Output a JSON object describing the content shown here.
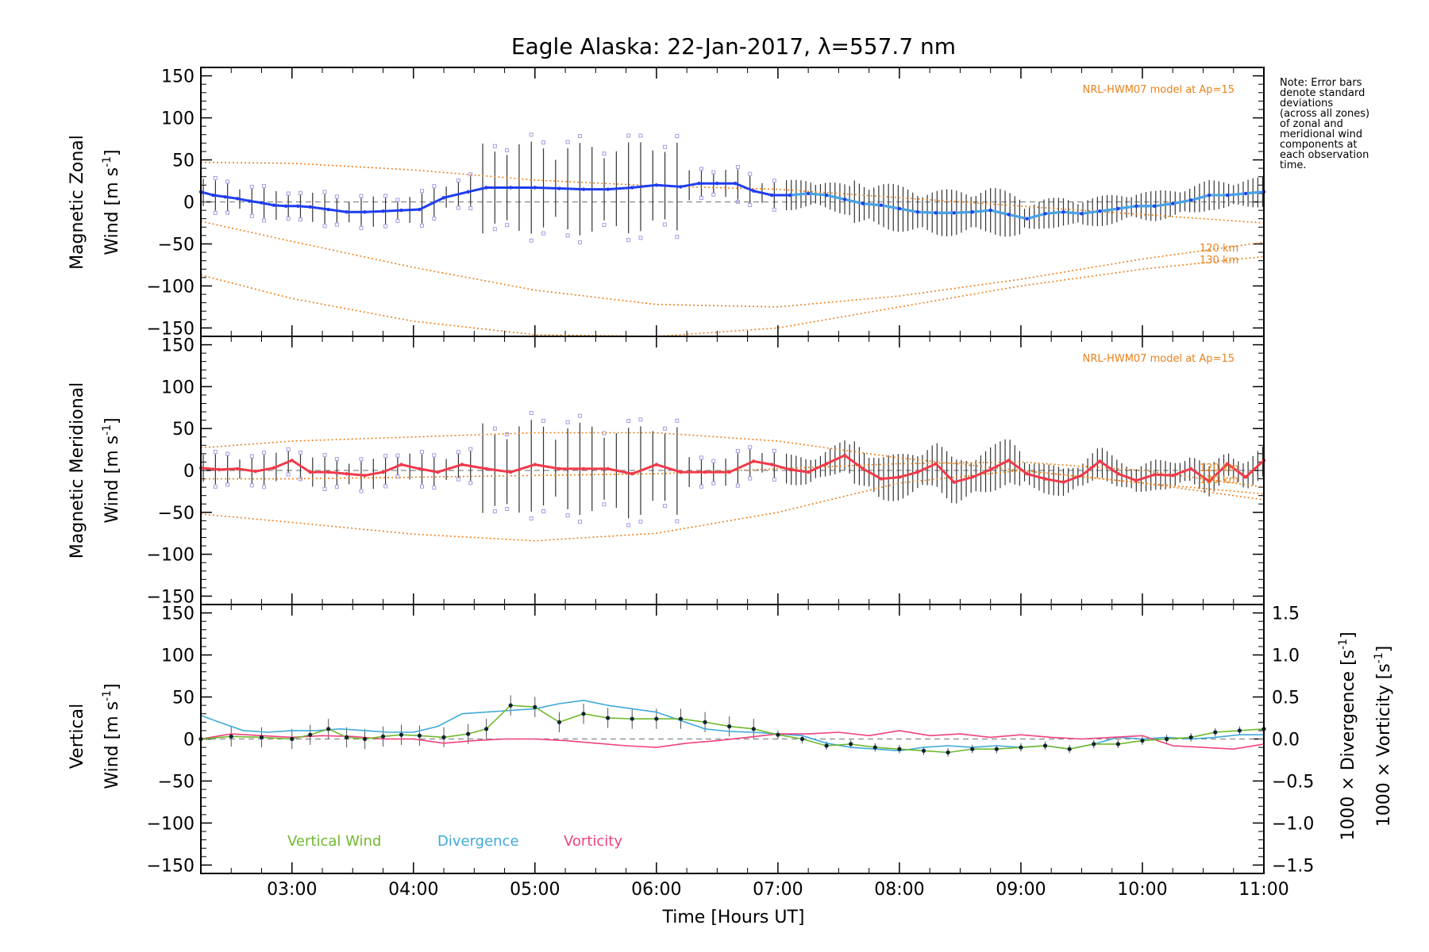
{
  "title": "Eagle Alaska: 22-Jan-2017, λ=557.7 nm",
  "note": [
    "Note: Error bars",
    "denote standard",
    "deviations",
    "(across all zones)",
    "of zonal and",
    "meridional wind",
    "components at",
    "each observation",
    "time."
  ],
  "colors": {
    "model": "#e8821e",
    "zonal": "#1f3df0",
    "zonal_light": "#46a6e6",
    "meridional": "#f03a4a",
    "vertical": "#6fba2c",
    "divergence": "#3fa9d9",
    "vorticity": "#f0417e",
    "zone_box": "#a59be0",
    "zero": "#888888"
  },
  "x_ticks": [
    "03:00",
    "04:00",
    "05:00",
    "06:00",
    "07:00",
    "08:00",
    "09:00",
    "10:00",
    "11:00"
  ],
  "xlabel": "Time [Hours UT]",
  "y_ticks": [
    "150",
    "100",
    "50",
    "0",
    "−50",
    "−100",
    "−150"
  ],
  "panels": {
    "zonal": {
      "ylabel_1": "Magnetic Zonal",
      "ylabel_2": "Wind [m s",
      "ylabel_sup": "-1",
      "ylabel_end": "]",
      "model_label": "NRL-HWM07 model at Ap=15",
      "km_120": "120 km",
      "km_130": "130 km"
    },
    "meridional": {
      "ylabel_1": "Magnetic Meridional",
      "ylabel_2": "Wind [m s",
      "ylabel_sup": "-1",
      "ylabel_end": "]",
      "model_label": "NRL-HWM07 model at Ap=15",
      "km_120": "120 km",
      "km_130": "130 km"
    },
    "vertical": {
      "ylabel_1": "Vertical",
      "ylabel_2": "Wind [m s",
      "ylabel_sup": "-1",
      "ylabel_end": "]",
      "right_ticks": [
        "1.5",
        "1.0",
        "0.5",
        "0.0",
        "−0.5",
        "−1.0",
        "−1.5"
      ],
      "right_label_div": "1000 × Divergence [s",
      "right_label_vor": "1000 × Vorticity [s",
      "right_sup": "-1",
      "right_end": "]",
      "legend": [
        "Vertical Wind",
        "Divergence",
        "Vorticity"
      ]
    }
  },
  "chart_data": [
    {
      "type": "line",
      "title": "Eagle Alaska: 22-Jan-2017, λ=557.7 nm",
      "xlabel": "",
      "ylabel": "Magnetic Zonal Wind [m s-1]",
      "xlim": [
        2.25,
        11.0
      ],
      "ylim": [
        -160,
        160
      ],
      "series": [
        {
          "name": "zonal",
          "x": [
            2.25,
            2.35,
            2.45,
            2.55,
            2.65,
            2.75,
            2.85,
            2.95,
            3.05,
            3.15,
            3.3,
            3.45,
            3.6,
            3.75,
            3.9,
            4.05,
            4.25,
            4.45,
            4.6,
            4.8,
            5.0,
            5.2,
            5.4,
            5.6,
            5.8,
            6.0,
            6.2,
            6.35,
            6.5,
            6.65,
            6.8,
            6.95,
            7.1,
            7.25,
            7.4,
            7.55,
            7.7,
            7.85,
            8.0,
            8.15,
            8.3,
            8.45,
            8.6,
            8.75,
            8.9,
            9.05,
            9.2,
            9.35,
            9.5,
            9.65,
            9.8,
            9.95,
            10.1,
            10.25,
            10.4,
            10.55,
            10.7,
            10.85,
            11.0
          ],
          "y": [
            12,
            8,
            6,
            4,
            1,
            -1,
            -4,
            -5,
            -5,
            -6,
            -9,
            -12,
            -12,
            -11,
            -10,
            -9,
            5,
            12,
            17,
            17,
            17,
            16,
            15,
            15,
            17,
            20,
            18,
            22,
            22,
            22,
            13,
            8,
            8,
            10,
            8,
            3,
            -2,
            -4,
            -8,
            -12,
            -13,
            -13,
            -12,
            -10,
            -15,
            -20,
            -14,
            -12,
            -14,
            -11,
            -8,
            -5,
            -5,
            -2,
            2,
            8,
            8,
            10,
            12
          ]
        },
        {
          "name": "NRL-HWM07 model at Ap=15",
          "x": [
            2.25,
            3,
            4,
            5,
            6,
            7,
            8,
            9,
            10,
            11
          ],
          "y": [
            47,
            46,
            38,
            26,
            19,
            15,
            5,
            -5,
            -15,
            -25
          ]
        },
        {
          "name": "120 km",
          "x": [
            2.25,
            3,
            4,
            5,
            6,
            7,
            8,
            9,
            10,
            11
          ],
          "y": [
            -23,
            -47,
            -78,
            -105,
            -122,
            -125,
            -112,
            -92,
            -68,
            -48
          ]
        },
        {
          "name": "130 km",
          "x": [
            2.25,
            3,
            4,
            5,
            6,
            7,
            8,
            9,
            10,
            11
          ],
          "y": [
            -87,
            -115,
            -142,
            -158,
            -160,
            -150,
            -125,
            -100,
            -80,
            -65
          ]
        }
      ]
    },
    {
      "type": "line",
      "xlabel": "",
      "ylabel": "Magnetic Meridional Wind [m s-1]",
      "xlim": [
        2.25,
        11.0
      ],
      "ylim": [
        -160,
        160
      ],
      "series": [
        {
          "name": "meridional",
          "x": [
            2.25,
            2.4,
            2.55,
            2.7,
            2.85,
            3.0,
            3.15,
            3.3,
            3.45,
            3.6,
            3.75,
            3.9,
            4.05,
            4.2,
            4.4,
            4.6,
            4.8,
            5.0,
            5.2,
            5.4,
            5.6,
            5.8,
            6.0,
            6.2,
            6.4,
            6.6,
            6.8,
            6.95,
            7.1,
            7.25,
            7.4,
            7.55,
            7.7,
            7.85,
            8.0,
            8.15,
            8.3,
            8.45,
            8.6,
            8.75,
            8.9,
            9.05,
            9.2,
            9.35,
            9.5,
            9.65,
            9.8,
            9.95,
            10.1,
            10.25,
            10.4,
            10.55,
            10.7,
            10.85,
            11.0
          ],
          "y": [
            3,
            1,
            2,
            -1,
            3,
            12,
            -2,
            -2,
            -4,
            -6,
            -2,
            7,
            2,
            -2,
            7,
            2,
            -2,
            7,
            2,
            2,
            2,
            -4,
            7,
            -2,
            -2,
            -2,
            11,
            7,
            1,
            -2,
            8,
            18,
            2,
            -10,
            -8,
            -2,
            8,
            -14,
            -8,
            1,
            12,
            -4,
            -10,
            -14,
            -6,
            11,
            -4,
            -12,
            -5,
            -6,
            2,
            -13,
            8,
            -8,
            12
          ]
        },
        {
          "name": "NRL-HWM07 model at Ap=15",
          "x": [
            2.25,
            3,
            4,
            5,
            6,
            7,
            8,
            9,
            10,
            11
          ],
          "y": [
            -52,
            -62,
            -76,
            -84,
            -75,
            -50,
            -15,
            0,
            -15,
            -35
          ]
        },
        {
          "name": "120 km",
          "x": [
            2.25,
            3,
            4,
            5,
            6,
            7,
            8,
            9,
            10,
            11
          ],
          "y": [
            27,
            35,
            40,
            45,
            45,
            35,
            15,
            0,
            -15,
            -28
          ]
        },
        {
          "name": "130 km",
          "x": [
            2.25,
            3,
            4,
            5,
            6,
            7,
            8,
            9,
            10,
            11
          ],
          "y": [
            -10,
            -10,
            -8,
            -6,
            -4,
            2,
            8,
            10,
            0,
            -20
          ]
        }
      ]
    },
    {
      "type": "line",
      "xlabel": "Time [Hours UT]",
      "ylabel": "Vertical Wind [m s-1]",
      "xlim": [
        2.25,
        11.0
      ],
      "ylim": [
        -160,
        160
      ],
      "y2lim": [
        -1.6,
        1.6
      ],
      "series": [
        {
          "name": "Vertical Wind",
          "x": [
            2.25,
            2.5,
            2.75,
            3.0,
            3.15,
            3.3,
            3.45,
            3.6,
            3.75,
            3.9,
            4.05,
            4.25,
            4.45,
            4.6,
            4.8,
            5.0,
            5.2,
            5.4,
            5.6,
            5.8,
            6.0,
            6.2,
            6.4,
            6.6,
            6.8,
            7.0,
            7.2,
            7.4,
            7.6,
            7.8,
            8.0,
            8.2,
            8.4,
            8.6,
            8.8,
            9.0,
            9.2,
            9.4,
            9.6,
            9.8,
            10.0,
            10.2,
            10.4,
            10.6,
            10.8,
            11.0
          ],
          "y": [
            0,
            3,
            2,
            0,
            5,
            12,
            2,
            0,
            3,
            5,
            4,
            2,
            6,
            12,
            40,
            38,
            20,
            30,
            25,
            24,
            24,
            24,
            20,
            15,
            12,
            5,
            0,
            -8,
            -6,
            -10,
            -12,
            -14,
            -16,
            -12,
            -12,
            -10,
            -8,
            -12,
            -6,
            -6,
            -2,
            0,
            2,
            8,
            10,
            12
          ]
        },
        {
          "name": "Divergence",
          "x": [
            2.25,
            2.4,
            2.6,
            2.8,
            3.0,
            3.2,
            3.4,
            3.6,
            3.8,
            4.0,
            4.2,
            4.4,
            4.6,
            4.8,
            5.0,
            5.2,
            5.4,
            5.6,
            5.8,
            6.0,
            6.2,
            6.4,
            6.6,
            6.8,
            7.0,
            7.2,
            7.4,
            7.6,
            7.8,
            8.0,
            8.2,
            8.4,
            8.6,
            8.8,
            9.0,
            9.2,
            9.4,
            9.6,
            9.8,
            10.0,
            10.2,
            10.4,
            10.6,
            10.8,
            11.0
          ],
          "y": [
            0.28,
            0.2,
            0.1,
            0.08,
            0.1,
            0.1,
            0.12,
            0.1,
            0.08,
            0.08,
            0.15,
            0.3,
            0.32,
            0.34,
            0.36,
            0.42,
            0.46,
            0.4,
            0.36,
            0.32,
            0.22,
            0.12,
            0.09,
            0.08,
            0.06,
            0.04,
            -0.05,
            -0.1,
            -0.12,
            -0.14,
            -0.1,
            -0.08,
            -0.1,
            -0.08,
            -0.1,
            -0.08,
            -0.12,
            -0.06,
            0.02,
            0.0,
            0.02,
            0.0,
            0.02,
            0.05,
            0.05
          ]
        },
        {
          "name": "Vorticity",
          "x": [
            2.25,
            2.5,
            2.75,
            3.0,
            3.25,
            3.5,
            3.75,
            4.0,
            4.25,
            4.5,
            4.75,
            5.0,
            5.25,
            5.5,
            5.75,
            6.0,
            6.25,
            6.5,
            6.75,
            7.0,
            7.25,
            7.5,
            7.75,
            8.0,
            8.25,
            8.5,
            8.75,
            9.0,
            9.25,
            9.5,
            9.75,
            10.0,
            10.25,
            10.5,
            10.75,
            11.0
          ],
          "y": [
            0.0,
            0.06,
            0.04,
            0.02,
            0.04,
            0.03,
            0.0,
            0.0,
            -0.05,
            -0.02,
            0.0,
            0.0,
            -0.02,
            -0.05,
            -0.08,
            -0.1,
            -0.05,
            -0.02,
            0.02,
            0.06,
            0.06,
            0.08,
            0.04,
            0.1,
            0.04,
            0.06,
            0.02,
            0.05,
            0.02,
            0.0,
            0.02,
            0.04,
            -0.08,
            -0.1,
            -0.12,
            -0.06
          ]
        }
      ]
    }
  ]
}
